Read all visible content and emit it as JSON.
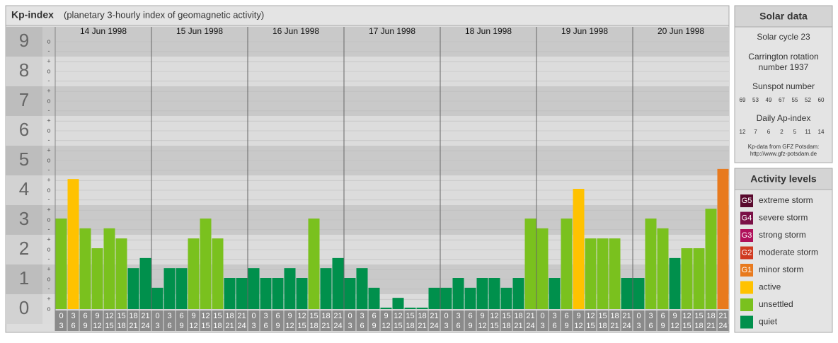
{
  "chart_data": {
    "type": "bar",
    "title": "Kp-index",
    "subtitle": "(planetary 3-hourly index of geomagnetic activity)",
    "days": [
      "14 Jun 1998",
      "15 Jun 1998",
      "16 Jun 1998",
      "17 Jun 1998",
      "18 Jun 1998",
      "19 Jun 1998",
      "20 Jun 1998"
    ],
    "hour_ranges": [
      [
        "0",
        "3"
      ],
      [
        "3",
        "6"
      ],
      [
        "6",
        "9"
      ],
      [
        "9",
        "12"
      ],
      [
        "12",
        "15"
      ],
      [
        "15",
        "18"
      ],
      [
        "18",
        "21"
      ],
      [
        "21",
        "24"
      ]
    ],
    "values": [
      3,
      4.33,
      2.67,
      2,
      2.67,
      2.33,
      1.33,
      1.67,
      0.67,
      1.33,
      1.33,
      2.33,
      3,
      2.33,
      1,
      1,
      1.33,
      1,
      1,
      1.33,
      1,
      3,
      1.33,
      1.67,
      1,
      1.33,
      0.67,
      0,
      0.33,
      0,
      0,
      0.67,
      0.67,
      1,
      0.67,
      1,
      1,
      0.67,
      1,
      3,
      2.67,
      1,
      3,
      4,
      2.33,
      2.33,
      2.33,
      1,
      1,
      3,
      2.67,
      1.67,
      2,
      2,
      3.33,
      4.67
    ],
    "colors": [
      "#7ac11e",
      "#ffc200",
      "#7ac11e",
      "#7ac11e",
      "#7ac11e",
      "#7ac11e",
      "#00904c",
      "#00904c",
      "#00904c",
      "#00904c",
      "#00904c",
      "#7ac11e",
      "#7ac11e",
      "#7ac11e",
      "#00904c",
      "#00904c",
      "#00904c",
      "#00904c",
      "#00904c",
      "#00904c",
      "#00904c",
      "#7ac11e",
      "#00904c",
      "#00904c",
      "#00904c",
      "#00904c",
      "#00904c",
      "#00904c",
      "#00904c",
      "#00904c",
      "#00904c",
      "#00904c",
      "#00904c",
      "#00904c",
      "#00904c",
      "#00904c",
      "#00904c",
      "#00904c",
      "#00904c",
      "#7ac11e",
      "#7ac11e",
      "#00904c",
      "#7ac11e",
      "#ffc200",
      "#7ac11e",
      "#7ac11e",
      "#7ac11e",
      "#00904c",
      "#00904c",
      "#7ac11e",
      "#7ac11e",
      "#00904c",
      "#7ac11e",
      "#7ac11e",
      "#7ac11e",
      "#e87a1e"
    ],
    "ylim": [
      0,
      9.5
    ],
    "yticks": [
      0,
      1,
      2,
      3,
      4,
      5,
      6,
      7,
      8,
      9
    ],
    "minor_ticks": [
      {
        "value": 0,
        "label": "o"
      },
      {
        "value": 0.33,
        "label": "+"
      },
      {
        "value": 0.67,
        "label": "-"
      },
      {
        "value": 1,
        "label": "o"
      },
      {
        "value": 1.33,
        "label": "+"
      },
      {
        "value": 1.67,
        "label": "-"
      },
      {
        "value": 2,
        "label": "o"
      },
      {
        "value": 2.33,
        "label": "+"
      },
      {
        "value": 2.67,
        "label": "-"
      },
      {
        "value": 3,
        "label": "o"
      },
      {
        "value": 3.33,
        "label": "+"
      },
      {
        "value": 3.67,
        "label": "-"
      },
      {
        "value": 4,
        "label": "o"
      },
      {
        "value": 4.33,
        "label": "+"
      },
      {
        "value": 4.67,
        "label": "-"
      },
      {
        "value": 5,
        "label": "o"
      },
      {
        "value": 5.33,
        "label": "+"
      },
      {
        "value": 5.67,
        "label": "-"
      },
      {
        "value": 6,
        "label": "o"
      },
      {
        "value": 6.33,
        "label": "+"
      },
      {
        "value": 6.67,
        "label": "-"
      },
      {
        "value": 7,
        "label": "o"
      },
      {
        "value": 7.33,
        "label": "+"
      },
      {
        "value": 7.67,
        "label": "-"
      },
      {
        "value": 8,
        "label": "o"
      },
      {
        "value": 8.33,
        "label": "+"
      },
      {
        "value": 8.67,
        "label": "-"
      },
      {
        "value": 9,
        "label": "o"
      }
    ],
    "grid": true
  },
  "solar": {
    "title": "Solar data",
    "cycle": "Solar cycle 23",
    "carrington": [
      "Carrington rotation",
      "number 1937"
    ],
    "sunspot_title": "Sunspot number",
    "sunspot": [
      "69",
      "53",
      "49",
      "67",
      "55",
      "52",
      "60"
    ],
    "ap_title": "Daily Ap-index",
    "ap": [
      "12",
      "7",
      "6",
      "2",
      "5",
      "11",
      "14"
    ],
    "source": [
      "Kp-data from GFZ Potsdam:",
      "http://www.gfz-potsdam.de"
    ]
  },
  "legend": {
    "title": "Activity levels",
    "items": [
      {
        "badge": "G5",
        "label": "extreme storm",
        "color": "#5a0a2e"
      },
      {
        "badge": "G4",
        "label": "severe storm",
        "color": "#7a1046"
      },
      {
        "badge": "G3",
        "label": "strong storm",
        "color": "#b0105a"
      },
      {
        "badge": "G2",
        "label": "moderate storm",
        "color": "#d03a20"
      },
      {
        "badge": "G1",
        "label": "minor storm",
        "color": "#e87a1e"
      },
      {
        "label": "active",
        "color": "#ffc200"
      },
      {
        "label": "unsettled",
        "color": "#7ac11e"
      },
      {
        "label": "quiet",
        "color": "#00904c"
      }
    ]
  }
}
